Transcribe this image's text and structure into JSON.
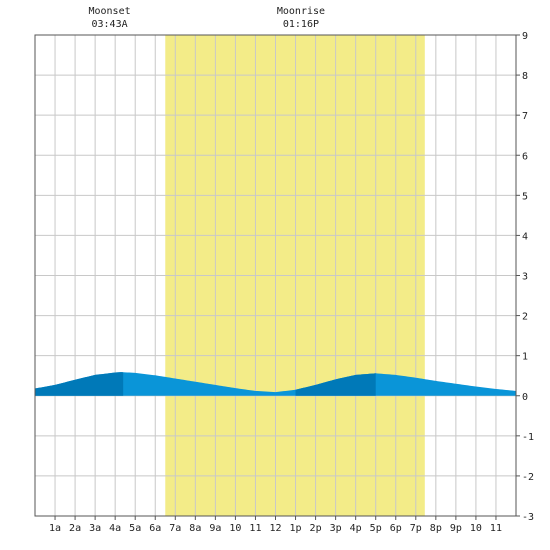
{
  "chart_data": {
    "type": "area",
    "x_unit": "hour of day",
    "xlim": [
      0,
      24
    ],
    "ylim": [
      -3,
      9
    ],
    "y_ticks": [
      -3,
      -2,
      -1,
      0,
      1,
      2,
      3,
      4,
      5,
      6,
      7,
      8,
      9
    ],
    "x_tick_labels": [
      "1a",
      "2a",
      "3a",
      "4a",
      "5a",
      "6a",
      "7a",
      "8a",
      "9a",
      "10",
      "11",
      "12",
      "1p",
      "2p",
      "3p",
      "4p",
      "5p",
      "6p",
      "7p",
      "8p",
      "9p",
      "10",
      "11"
    ],
    "grid": true,
    "daylight": {
      "start": 6.5,
      "end": 19.45
    },
    "moon_events": [
      {
        "label": "Moonset",
        "time": "03:43A",
        "hour": 3.72
      },
      {
        "label": "Moonrise",
        "time": "01:16P",
        "hour": 13.27
      }
    ],
    "tide_series": {
      "x": [
        0,
        1,
        2,
        3,
        4,
        4.3,
        5,
        6,
        7,
        8,
        9,
        10,
        11,
        12,
        13,
        14,
        15,
        16,
        17,
        18,
        19,
        20,
        21,
        22,
        23,
        24
      ],
      "y": [
        0.18,
        0.27,
        0.4,
        0.52,
        0.58,
        0.59,
        0.57,
        0.51,
        0.43,
        0.35,
        0.27,
        0.19,
        0.12,
        0.09,
        0.15,
        0.27,
        0.41,
        0.52,
        0.56,
        0.52,
        0.45,
        0.37,
        0.3,
        0.23,
        0.17,
        0.12
      ]
    },
    "shading": {
      "dark_segments": [
        [
          0,
          4.4
        ],
        [
          13,
          17
        ]
      ]
    },
    "colors": {
      "daylight": "#f3ec88",
      "tide_light": "#0a95d8",
      "tide_dark": "#0079b8",
      "grid": "#c8c8c8",
      "frame": "#555555"
    }
  }
}
